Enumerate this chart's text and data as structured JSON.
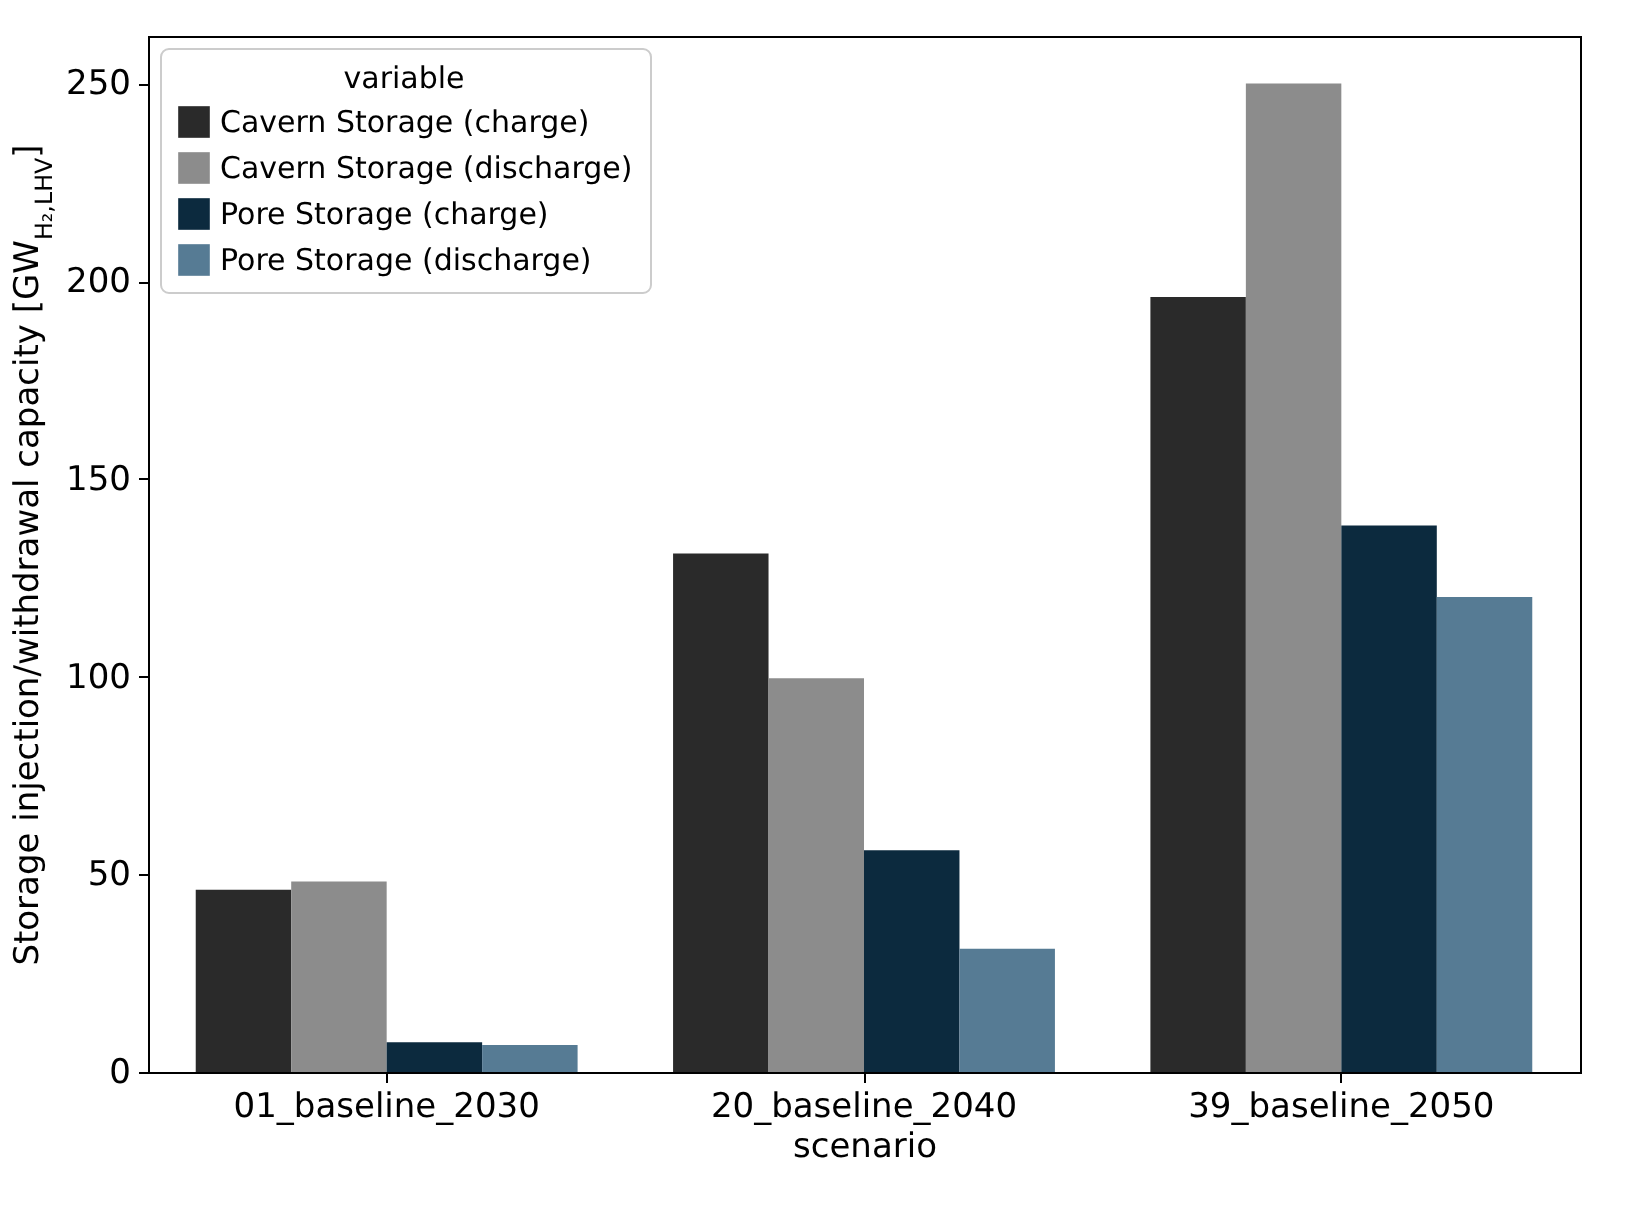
{
  "chart_data": {
    "type": "bar",
    "xlabel": "scenario",
    "ylabel": "Storage injection/withdrawal capacity [GW$_{H₂,LHV}$]",
    "legend_title": "variable",
    "legend": "top left",
    "grid": false,
    "categories": [
      "01_baseline_2030",
      "20_baseline_2040",
      "39_baseline_2050"
    ],
    "ylim": [
      0,
      262
    ],
    "yticks": [
      0,
      50,
      100,
      150,
      200,
      250
    ],
    "series": [
      {
        "name": "Cavern Storage (charge)",
        "color": "#2a2a2a",
        "values": [
          46.1,
          131.1,
          196
        ]
      },
      {
        "name": "Cavern Storage (discharge)",
        "color": "#8c8c8c",
        "values": [
          48.2,
          99.6,
          250
        ]
      },
      {
        "name": "Pore Storage (charge)",
        "color": "#0c2a3e",
        "values": [
          7.5,
          56.1,
          138.2
        ]
      },
      {
        "name": "Pore Storage (discharge)",
        "color": "#567b94",
        "values": [
          6.8,
          31.2,
          120.1
        ]
      }
    ]
  }
}
